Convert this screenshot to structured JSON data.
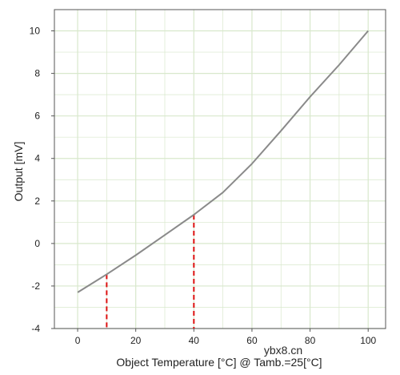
{
  "chart_data": {
    "type": "line",
    "title": "",
    "xlabel": "Object Temperature [°C] @ Tamb.=25[°C]",
    "ylabel": "Output [mV]",
    "xlim": [
      -8,
      106
    ],
    "ylim": [
      -4,
      11
    ],
    "x_ticks": [
      0,
      20,
      40,
      60,
      80,
      100
    ],
    "y_ticks": [
      -4,
      -2,
      0,
      2,
      4,
      6,
      8,
      10
    ],
    "x_minor_step": 10,
    "y_minor_step": 1,
    "grid": true,
    "legend": "none",
    "series": [
      {
        "x": [
          0,
          10,
          20,
          30,
          40,
          50,
          60,
          70,
          80,
          90,
          100
        ],
        "y": [
          -2.3,
          -1.45,
          -0.55,
          0.4,
          1.35,
          2.4,
          3.75,
          5.3,
          6.9,
          8.4,
          10.0
        ],
        "color": "#8a8a8a"
      }
    ],
    "markers": [
      {
        "x": 10,
        "y": -1.45,
        "color": "#dd1111",
        "style": "dashed"
      },
      {
        "x": 40,
        "y": 1.35,
        "color": "#dd1111",
        "style": "dashed"
      }
    ]
  },
  "watermark": "ybx8.cn",
  "colors": {
    "grid": "#d8e8cc",
    "frame": "#555555"
  }
}
